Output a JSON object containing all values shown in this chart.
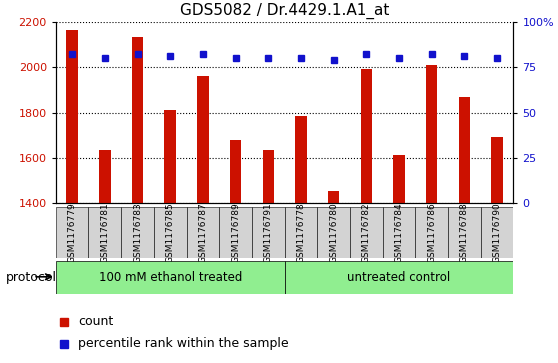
{
  "title": "GDS5082 / Dr.4429.1.A1_at",
  "samples": [
    "GSM1176779",
    "GSM1176781",
    "GSM1176783",
    "GSM1176785",
    "GSM1176787",
    "GSM1176789",
    "GSM1176791",
    "GSM1176778",
    "GSM1176780",
    "GSM1176782",
    "GSM1176784",
    "GSM1176786",
    "GSM1176788",
    "GSM1176790"
  ],
  "counts": [
    2165,
    1635,
    2135,
    1810,
    1960,
    1680,
    1635,
    1785,
    1455,
    1990,
    1615,
    2010,
    1870,
    1690
  ],
  "percentiles": [
    82,
    80,
    82,
    81,
    82,
    80,
    80,
    80,
    79,
    82,
    80,
    82,
    81,
    80
  ],
  "bar_color": "#cc1100",
  "dot_color": "#1111cc",
  "ylim_left": [
    1400,
    2200
  ],
  "ylim_right": [
    0,
    100
  ],
  "yticks_left": [
    1400,
    1600,
    1800,
    2000,
    2200
  ],
  "yticks_right": [
    0,
    25,
    50,
    75,
    100
  ],
  "yticklabels_right": [
    "0",
    "25",
    "50",
    "75",
    "100%"
  ],
  "group1_label": "100 mM ethanol treated",
  "group2_label": "untreated control",
  "group1_count": 7,
  "group2_count": 7,
  "protocol_label": "protocol",
  "legend_count_label": "count",
  "legend_percentile_label": "percentile rank within the sample",
  "plot_bg_color": "#ffffff",
  "sample_box_color": "#d3d3d3",
  "bg_color_group": "#90ee90",
  "grid_color": "#000000",
  "title_fontsize": 11,
  "tick_fontsize": 8,
  "sample_fontsize": 6.5,
  "label_fontsize": 9,
  "bar_width": 0.35
}
